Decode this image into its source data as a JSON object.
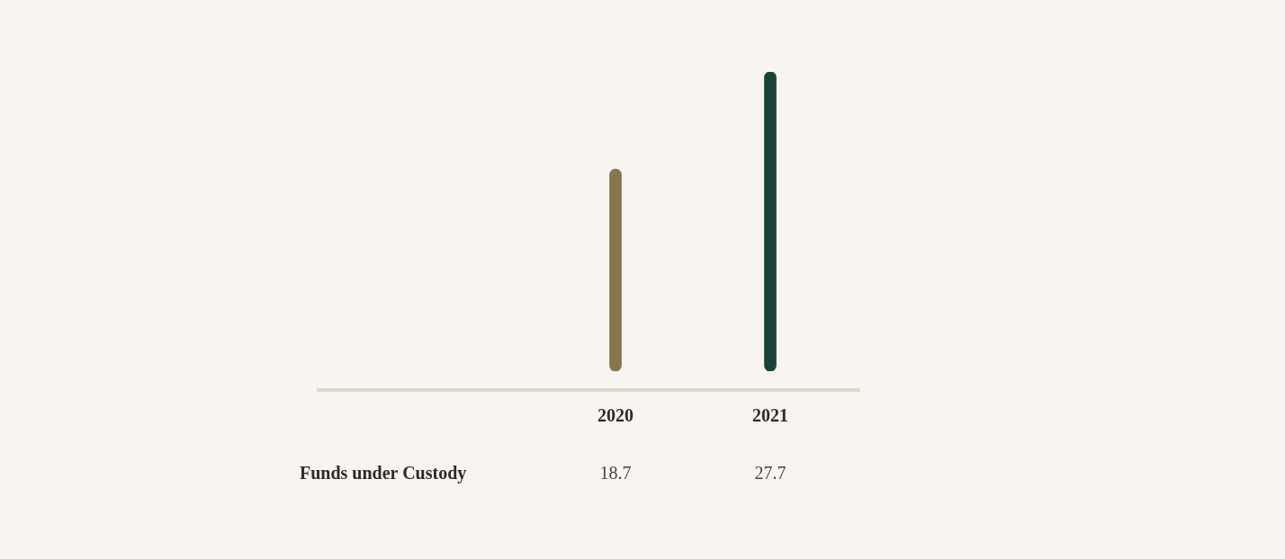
{
  "chart_data": {
    "type": "bar",
    "categories": [
      "2020",
      "2021"
    ],
    "series": [
      {
        "name": "Funds under Custody",
        "colors": [
          "#85764f",
          "#1a4338"
        ],
        "values": [
          18.7,
          27.7
        ]
      }
    ],
    "data_labels": true
  }
}
